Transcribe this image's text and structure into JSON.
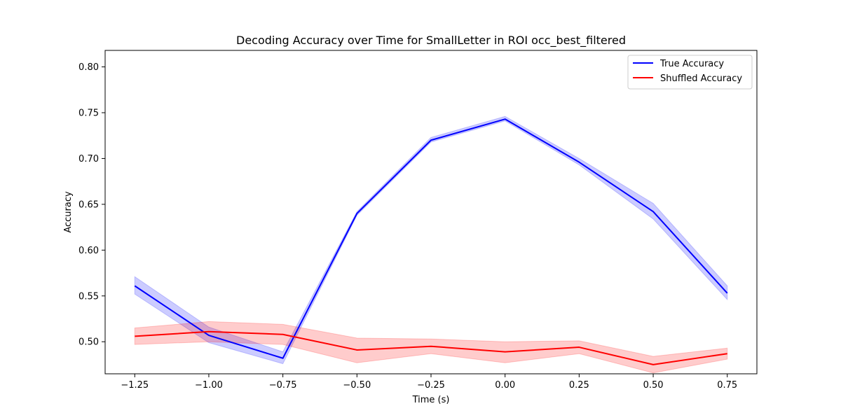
{
  "chart_data": {
    "type": "line",
    "title": "Decoding Accuracy over Time for SmallLetter in ROI occ_best_filtered",
    "xlabel": "Time (s)",
    "ylabel": "Accuracy",
    "xlim": [
      -1.35,
      0.85
    ],
    "ylim": [
      0.465,
      0.818
    ],
    "xticks": [
      -1.25,
      -1.0,
      -0.75,
      -0.5,
      -0.25,
      0.0,
      0.25,
      0.5,
      0.75
    ],
    "xtick_labels": [
      "−1.25",
      "−1.00",
      "−0.75",
      "−0.50",
      "−0.25",
      "0.00",
      "0.25",
      "0.50",
      "0.75"
    ],
    "yticks": [
      0.5,
      0.55,
      0.6,
      0.65,
      0.7,
      0.75,
      0.8
    ],
    "ytick_labels": [
      "0.50",
      "0.55",
      "0.60",
      "0.65",
      "0.70",
      "0.75",
      "0.80"
    ],
    "grid": false,
    "legend_position": "top-right",
    "x": [
      -1.25,
      -1.0,
      -0.75,
      -0.5,
      -0.25,
      0.0,
      0.25,
      0.5,
      0.75
    ],
    "series": [
      {
        "name": "True Accuracy",
        "color": "#0000ff",
        "band_color": "#0000ff",
        "values": [
          0.561,
          0.507,
          0.482,
          0.64,
          0.72,
          0.743,
          0.696,
          0.642,
          0.553
        ],
        "lower": [
          0.552,
          0.499,
          0.476,
          0.638,
          0.718,
          0.741,
          0.693,
          0.634,
          0.546
        ],
        "upper": [
          0.571,
          0.516,
          0.489,
          0.642,
          0.723,
          0.746,
          0.7,
          0.651,
          0.561
        ]
      },
      {
        "name": "Shuffled Accuracy",
        "color": "#ff0000",
        "band_color": "#ff0000",
        "values": [
          0.506,
          0.511,
          0.508,
          0.491,
          0.495,
          0.489,
          0.494,
          0.475,
          0.487
        ],
        "lower": [
          0.497,
          0.5,
          0.497,
          0.477,
          0.487,
          0.477,
          0.487,
          0.466,
          0.481
        ],
        "upper": [
          0.515,
          0.522,
          0.519,
          0.504,
          0.503,
          0.5,
          0.501,
          0.484,
          0.493
        ]
      }
    ]
  }
}
